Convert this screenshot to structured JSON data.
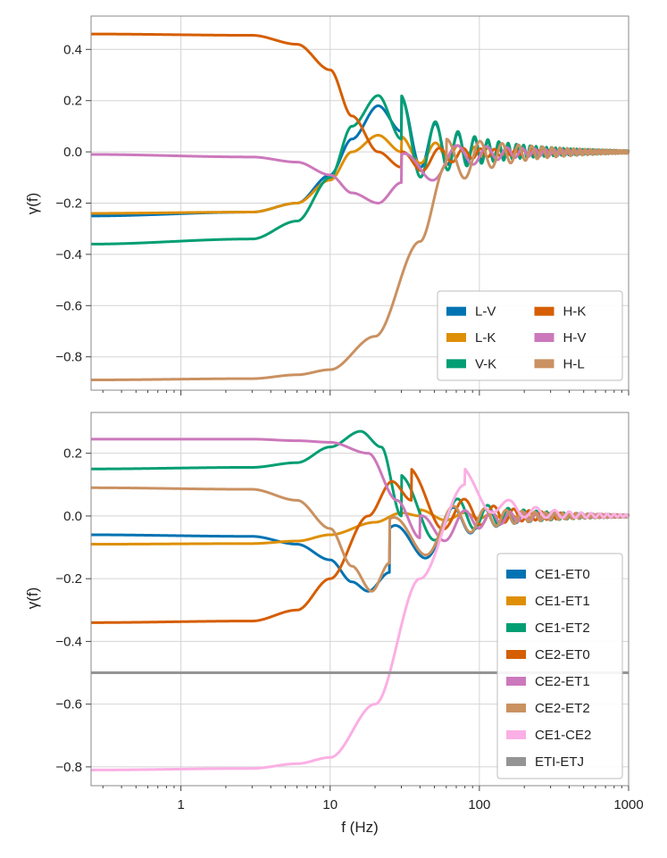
{
  "chart_data": [
    {
      "type": "line",
      "xscale": "log",
      "xlim": [
        0.25,
        1000
      ],
      "ylim": [
        -0.93,
        0.53
      ],
      "xlabel": "",
      "ylabel": "γ(f)",
      "grid": true,
      "legend_placement": "lower-right",
      "legend_columns": 2,
      "yticks": [
        "0.4",
        "0.2",
        "0.0",
        "−0.2",
        "−0.4",
        "−0.6",
        "−0.8"
      ],
      "ytick_values": [
        0.4,
        0.2,
        0.0,
        -0.2,
        -0.4,
        -0.6,
        -0.8
      ],
      "series": [
        {
          "name": "L-V",
          "color": "#0173b2",
          "lowf": -0.25,
          "center": 13,
          "k": 2.2,
          "x": [
            0.25,
            3,
            6,
            10,
            14,
            21,
            30
          ],
          "y": [
            -0.25,
            -0.235,
            -0.2,
            -0.09,
            0.05,
            0.18,
            0.08
          ],
          "osc_amp": 0.14,
          "osc_period": 21
        },
        {
          "name": "L-K",
          "color": "#de8f05",
          "x": [
            0.25,
            3,
            6,
            10,
            14,
            21,
            30
          ],
          "y": [
            -0.24,
            -0.235,
            -0.2,
            -0.11,
            0.0,
            0.065,
            0.0
          ],
          "osc_amp": 0.06,
          "osc_period": 21
        },
        {
          "name": "V-K",
          "color": "#029e73",
          "x": [
            0.25,
            3,
            6,
            10,
            14,
            21,
            30
          ],
          "y": [
            -0.36,
            -0.34,
            -0.27,
            -0.1,
            0.1,
            0.22,
            0.05
          ],
          "osc_amp": 0.17,
          "osc_period": 21
        },
        {
          "name": "H-K",
          "color": "#d55e00",
          "x": [
            0.25,
            3,
            6,
            10,
            14,
            21,
            30
          ],
          "y": [
            0.46,
            0.455,
            0.42,
            0.32,
            0.14,
            0.0,
            -0.06
          ],
          "osc_amp": 0.06,
          "osc_period": 24
        },
        {
          "name": "H-V",
          "color": "#cc78bc",
          "x": [
            0.25,
            3,
            6,
            10,
            14,
            21,
            30
          ],
          "y": [
            -0.01,
            -0.02,
            -0.04,
            -0.09,
            -0.16,
            -0.2,
            -0.12
          ],
          "osc_amp": 0.11,
          "osc_period": 41
        },
        {
          "name": "H-L",
          "color": "#ca9161",
          "x": [
            0.25,
            3,
            6,
            10,
            20,
            40,
            60
          ],
          "y": [
            -0.89,
            -0.885,
            -0.87,
            -0.85,
            -0.72,
            -0.35,
            -0.05
          ],
          "osc_amp": 0.1,
          "osc_period": 41
        }
      ]
    },
    {
      "type": "line",
      "xscale": "log",
      "xlim": [
        0.25,
        1000
      ],
      "ylim": [
        -0.86,
        0.33
      ],
      "xlabel": "f (Hz)",
      "ylabel": "γ(f)",
      "grid": true,
      "legend_placement": "lower-right",
      "legend_columns": 1,
      "xticks": [
        "1",
        "10",
        "100",
        "1000"
      ],
      "xtick_values": [
        1,
        10,
        100,
        1000
      ],
      "yticks": [
        "0.2",
        "0.0",
        "−0.2",
        "−0.4",
        "−0.6",
        "−0.8"
      ],
      "ytick_values": [
        0.2,
        0.0,
        -0.2,
        -0.4,
        -0.6,
        -0.8
      ],
      "series": [
        {
          "name": "CE1-ET0",
          "color": "#0173b2",
          "x": [
            0.25,
            3,
            6,
            10,
            14,
            18,
            25
          ],
          "y": [
            -0.06,
            -0.065,
            -0.09,
            -0.14,
            -0.21,
            -0.24,
            -0.18
          ],
          "osc_amp": 0.14,
          "osc_period": 42
        },
        {
          "name": "CE1-ET1",
          "color": "#de8f05",
          "x": [
            0.25,
            3,
            6,
            10,
            20,
            30,
            40
          ],
          "y": [
            -0.09,
            -0.088,
            -0.08,
            -0.06,
            -0.02,
            0.01,
            0.0
          ],
          "osc_amp": 0.02,
          "osc_period": 40
        },
        {
          "name": "CE1-ET2",
          "color": "#029e73",
          "x": [
            0.25,
            3,
            6,
            10,
            16,
            22,
            30
          ],
          "y": [
            0.15,
            0.155,
            0.17,
            0.22,
            0.27,
            0.22,
            0.0
          ],
          "osc_amp": 0.13,
          "osc_period": 42
        },
        {
          "name": "CE2-ET0",
          "color": "#d55e00",
          "x": [
            0.25,
            3,
            6,
            10,
            18,
            26,
            35
          ],
          "y": [
            -0.34,
            -0.335,
            -0.3,
            -0.2,
            0.0,
            0.11,
            0.05
          ],
          "osc_amp": 0.1,
          "osc_period": 45
        },
        {
          "name": "CE2-ET1",
          "color": "#cc78bc",
          "x": [
            0.25,
            3,
            6,
            10,
            18,
            28,
            40
          ],
          "y": [
            0.245,
            0.245,
            0.24,
            0.235,
            0.2,
            0.05,
            -0.07
          ],
          "osc_amp": 0.07,
          "osc_period": 40
        },
        {
          "name": "CE2-ET2",
          "color": "#ca9161",
          "x": [
            0.25,
            3,
            6,
            10,
            14,
            19,
            25
          ],
          "y": [
            0.09,
            0.085,
            0.05,
            -0.04,
            -0.16,
            -0.24,
            -0.15
          ],
          "osc_amp": 0.14,
          "osc_period": 42
        },
        {
          "name": "CE1-CE2",
          "color": "#fbafe4",
          "x": [
            0.25,
            3,
            6,
            10,
            20,
            40,
            80
          ],
          "y": [
            -0.81,
            -0.805,
            -0.79,
            -0.77,
            -0.6,
            -0.2,
            0.1
          ],
          "osc_amp": 0.05,
          "osc_period": 80
        },
        {
          "name": "ETI-ETJ",
          "color": "#949494",
          "x": [
            0.25,
            1000
          ],
          "y": [
            -0.5,
            -0.5
          ],
          "osc_amp": 0,
          "osc_period": 1
        }
      ]
    }
  ]
}
